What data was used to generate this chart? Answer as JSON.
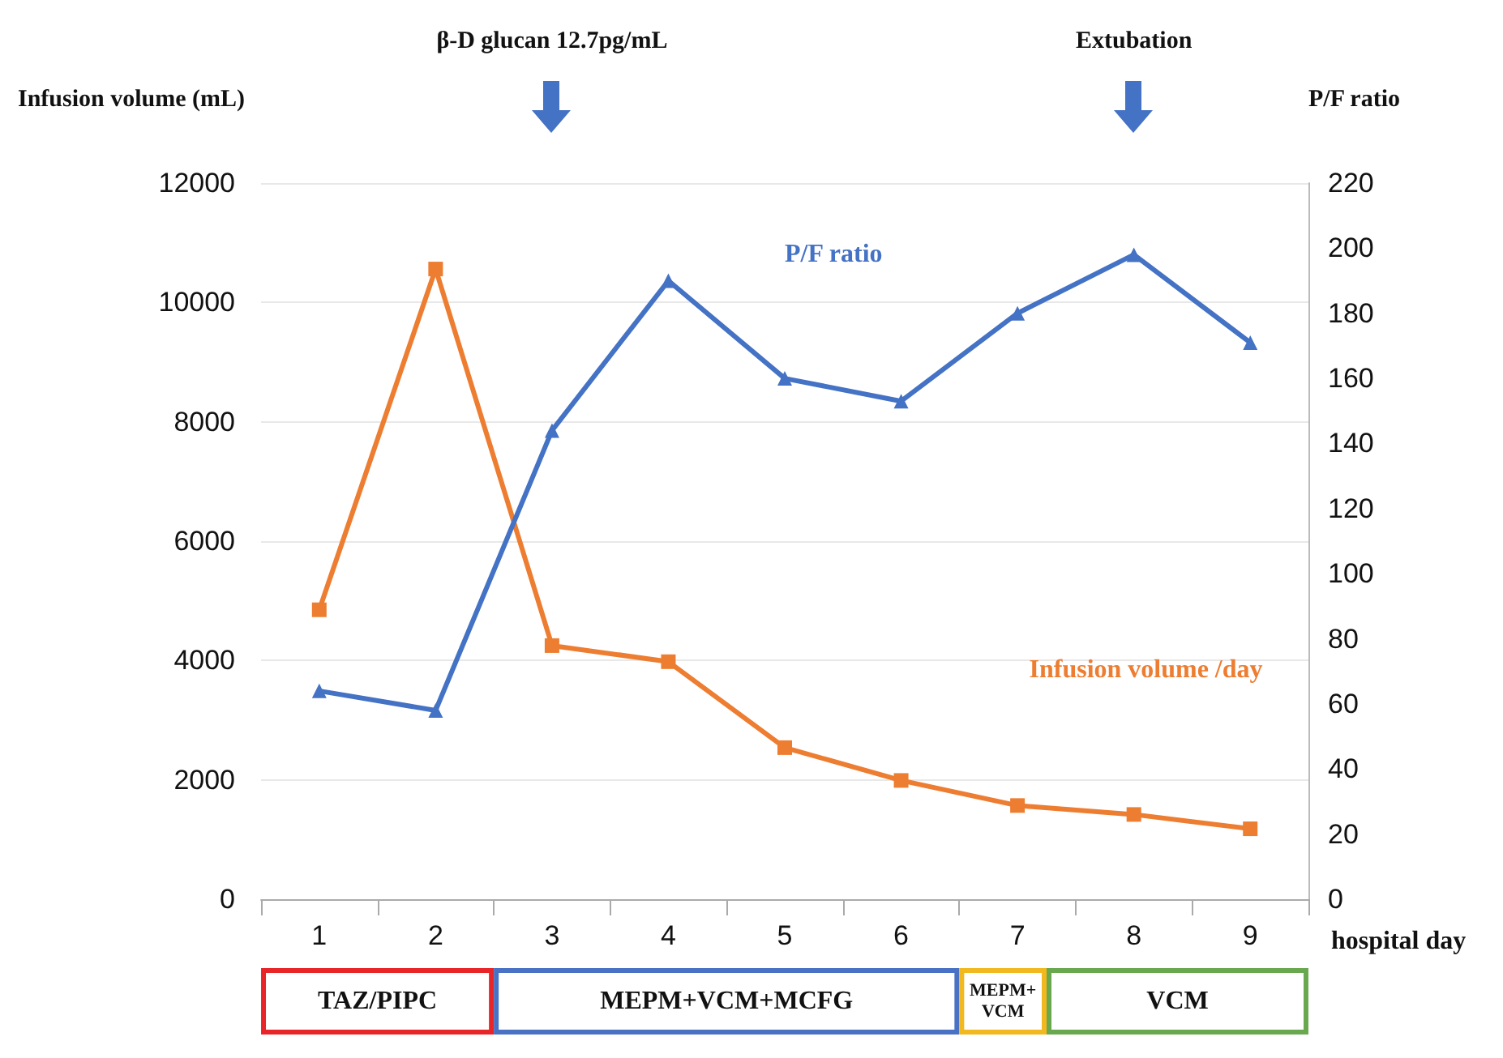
{
  "chart_data": {
    "type": "line",
    "categories": [
      "1",
      "2",
      "3",
      "4",
      "5",
      "6",
      "7",
      "8",
      "9"
    ],
    "xlabel": "hospital day",
    "ylabel": "Infusion volume (mL)",
    "y2label": "P/F ratio",
    "series": [
      {
        "name": "Infusion volume /day",
        "color": "#ed7d31",
        "marker": "square",
        "values": [
          4850,
          10560,
          4250,
          3980,
          2540,
          1990,
          1570,
          1420,
          1180
        ]
      },
      {
        "name": "P/F ratio",
        "color": "#4472c4",
        "marker": "triangle",
        "axis": "y2",
        "values": [
          64,
          58,
          144,
          190,
          160,
          153,
          180,
          198,
          171
        ]
      }
    ],
    "ylim": [
      0,
      12000
    ],
    "yticks": [
      0,
      2000,
      4000,
      6000,
      8000,
      10000,
      12000
    ],
    "y2lim": [
      0,
      220
    ],
    "y2ticks": [
      0,
      20,
      40,
      60,
      80,
      100,
      120,
      140,
      160,
      180,
      200,
      220
    ],
    "grid": "y",
    "legend": false,
    "line_style": "solid",
    "annotations": [
      "β-D glucan 12.7pg/mL",
      "Extubation",
      "TAZ/PIPC",
      "MEPM+VCM+MCFG",
      "MEPM+VCM",
      "VCM"
    ]
  }
}
